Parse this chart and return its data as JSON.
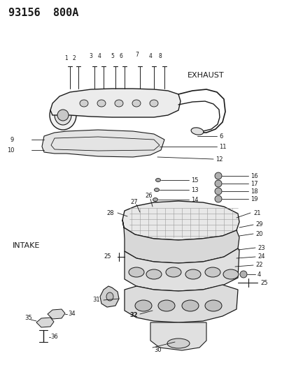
{
  "title": "93156  800A",
  "bg_color": "#ffffff",
  "lc": "#1a1a1a",
  "exhaust_label": "EXHAUST",
  "intake_label": "INTAKE",
  "fig_w": 4.14,
  "fig_h": 5.33,
  "dpi": 100
}
